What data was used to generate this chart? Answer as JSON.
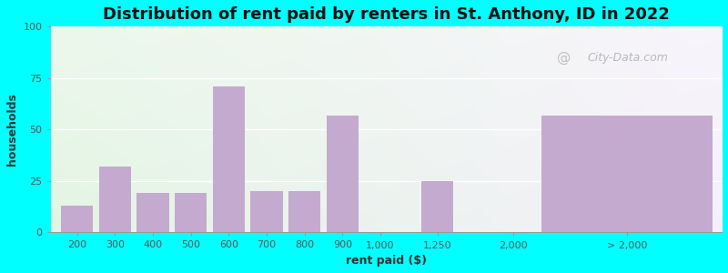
{
  "title": "Distribution of rent paid by renters in St. Anthony, ID in 2022",
  "xlabel": "rent paid ($)",
  "ylabel": "households",
  "bar_color": "#C4AACF",
  "background_outer": "#00FFFF",
  "background_plot_top_left": "#E8F5E9",
  "background_plot_top_right": "#F5F0FA",
  "bar_labels": [
    "200",
    "300",
    "400",
    "500",
    "600",
    "700",
    "800",
    "900",
    "1,000",
    "1,250",
    "2,000",
    "> 2,000"
  ],
  "bar_values": [
    13,
    32,
    19,
    19,
    71,
    20,
    20,
    57,
    0,
    25,
    0,
    57
  ],
  "ylim": [
    0,
    100
  ],
  "yticks": [
    0,
    25,
    50,
    75,
    100
  ],
  "watermark": "City-Data.com",
  "title_fontsize": 13,
  "axis_fontsize": 9,
  "tick_fontsize": 8
}
